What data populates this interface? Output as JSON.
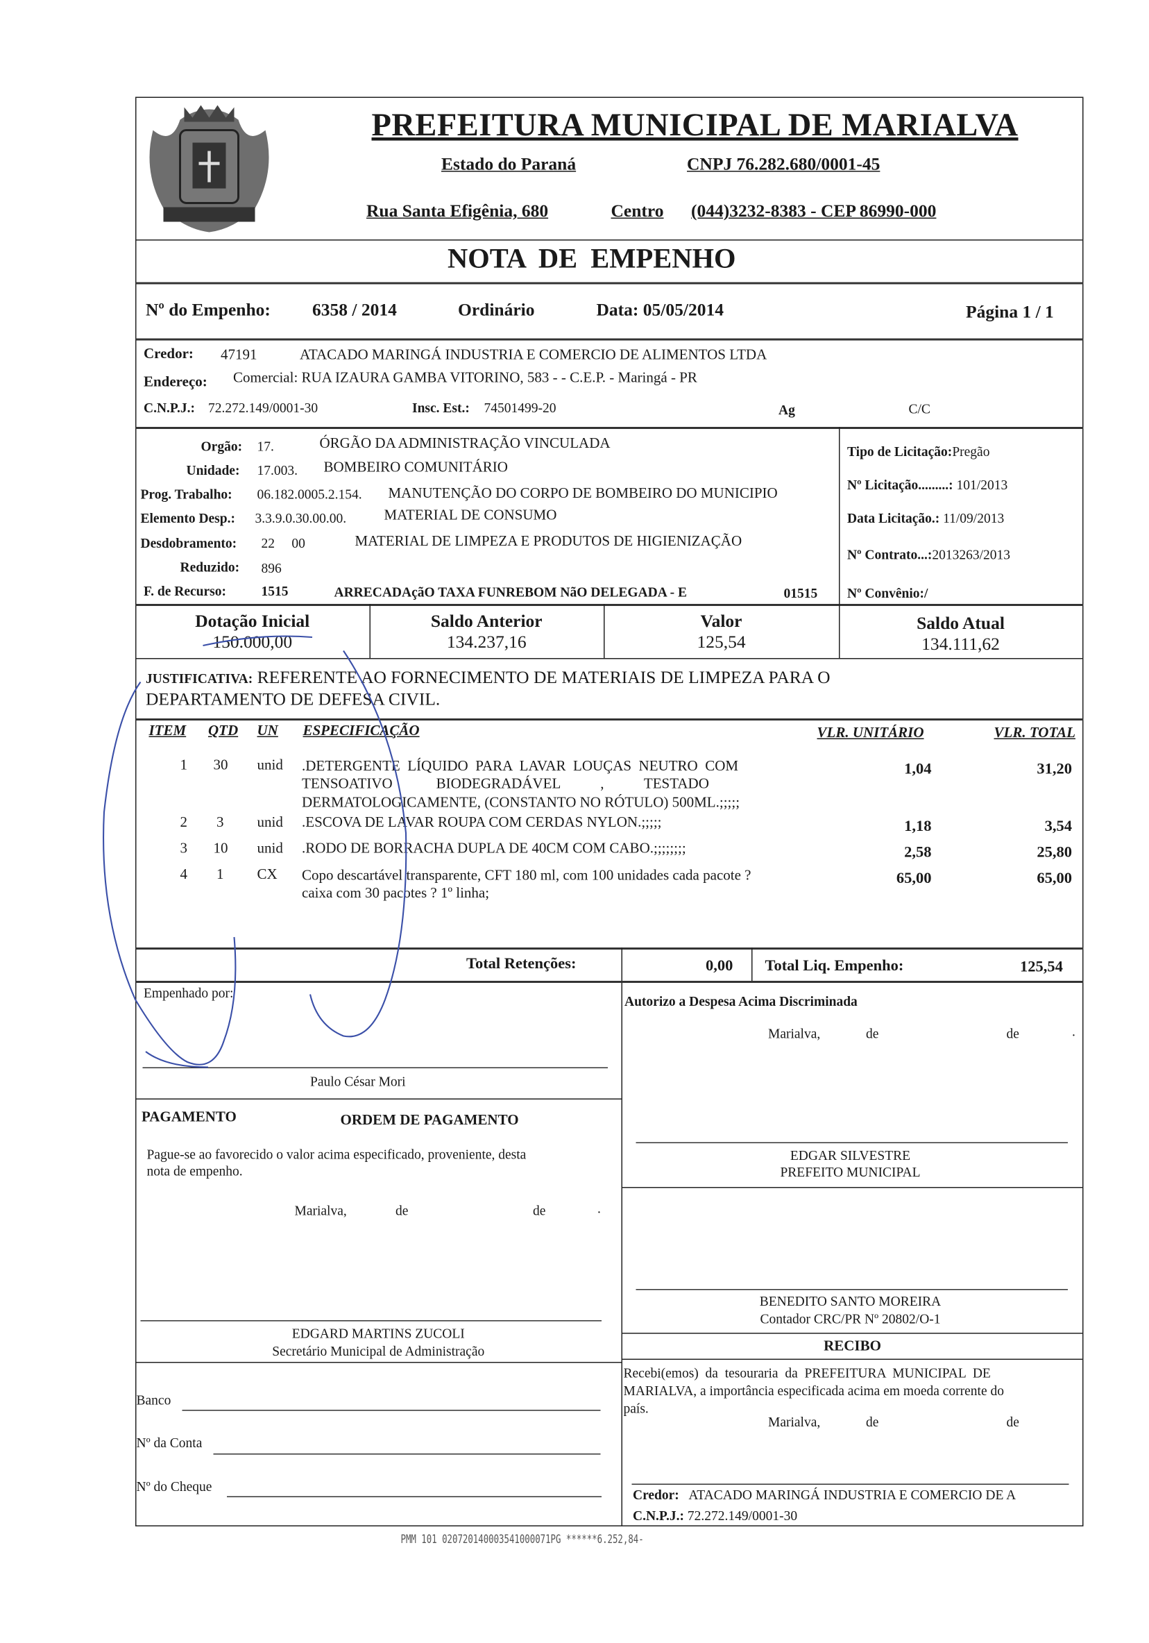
{
  "header": {
    "title": "PREFEITURA MUNICIPAL DE MARIALVA",
    "state": "Estado do Paraná",
    "cnpj": "CNPJ 76.282.680/0001-45",
    "address": "Rua Santa Efigênia, 680",
    "district": "Centro",
    "phone_cep": "(044)3232-8383  -  CEP 86990-000",
    "logo_icon": "coat-of-arms-marialva"
  },
  "doc_title": "NOTA DE EMPENHO",
  "summary": {
    "empenho_label": "Nº do Empenho:",
    "empenho_value": "6358 / 2014",
    "type": "Ordinário",
    "date": "Data: 05/05/2014",
    "page": "Página  1 / 1"
  },
  "credor": {
    "label": "Credor:",
    "code": "47191",
    "name": "ATACADO MARINGÁ INDUSTRIA E COMERCIO DE ALIMENTOS LTDA",
    "address_label": "Endereço:",
    "address": "Comercial: RUA IZAURA GAMBA VITORINO, 583 -  - C.E.P.  - Maringá  - PR",
    "cnpj_label": "C.N.P.J.:",
    "cnpj": "72.272.149/0001-30",
    "ie_label": "Insc. Est.:",
    "ie": "74501499-20",
    "ag": "Ag",
    "cc": "C/C"
  },
  "classification": [
    {
      "label": "Orgão:",
      "value": "17.",
      "desc": "ÓRGÃO DA ADMINISTRAÇÃO VINCULADA"
    },
    {
      "label": "Unidade:",
      "value": "17.003.",
      "desc": "BOMBEIRO COMUNITÁRIO"
    },
    {
      "label": "Prog. Trabalho:",
      "value": "06.182.0005.2.154.",
      "desc": "MANUTENÇÃO DO CORPO DE BOMBEIRO DO MUNICIPIO"
    },
    {
      "label": "Elemento Desp.:",
      "value": "3.3.9.0.30.00.00.",
      "desc": "MATERIAL DE CONSUMO"
    },
    {
      "label": "Desdobramento:",
      "value": "22     00",
      "desc": "MATERIAL DE LIMPEZA E PRODUTOS DE HIGIENIZAÇÃO"
    },
    {
      "label": "Reduzido:",
      "value": "896",
      "desc": ""
    },
    {
      "label": "F. de Recurso:",
      "value": "1515",
      "desc": "ARRECADAçãO TAXA FUNREBOM NãO DELEGADA - E",
      "code": "01515"
    }
  ],
  "licitacao": {
    "tipo": "Tipo de Licitação:",
    "tipo_value": "Pregão",
    "numero": "Nº Licitação.........:",
    "numero_value": "101/2013",
    "data": "Data Licitação.:",
    "data_value": "11/09/2013",
    "contrato": "Nº Contrato...:",
    "contrato_value": "2013263/2013",
    "convenio": "Nº Convênio:/"
  },
  "balances": [
    {
      "label": "Dotação Inicial",
      "value": "150.000,00"
    },
    {
      "label": "Saldo Anterior",
      "value": "134.237,16"
    },
    {
      "label": "Valor",
      "value": "125,54"
    },
    {
      "label": "Saldo Atual",
      "value": "134.111,62"
    }
  ],
  "justificativa": {
    "label": "JUSTIFICATIVA:",
    "line1": "REFERENTE AO FORNECIMENTO DE MATERIAIS DE LIMPEZA PARA O",
    "line2": "DEPARTAMENTO DE DEFESA CIVIL."
  },
  "items_header": {
    "item": "ITEM",
    "qtd": "QTD",
    "un": "UN",
    "spec": "ESPECIFICAÇÃO",
    "unit": "VLR. UNITÁRIO",
    "total": "VLR. TOTAL"
  },
  "items": [
    {
      "item": "1",
      "qtd": "30",
      "un": "unid",
      "lines": [
        ".DETERGENTE  LÍQUIDO  PARA  LAVAR  LOUÇAS  NEUTRO  COM",
        "TENSOATIVO            BIODEGRADÁVEL           ,           TESTADO",
        "DERMATOLOGICAMENTE, (CONSTANTO NO RÓTULO) 500ML.;;;;;"
      ],
      "unit": "1,04",
      "total": "31,20"
    },
    {
      "item": "2",
      "qtd": "3",
      "un": "unid",
      "lines": [
        ".ESCOVA DE LAVAR ROUPA COM CERDAS NYLON.;;;;;"
      ],
      "unit": "1,18",
      "total": "3,54"
    },
    {
      "item": "3",
      "qtd": "10",
      "un": "unid",
      "lines": [
        ".RODO DE BORRACHA DUPLA DE 40CM COM CABO.;;;;;;;;"
      ],
      "unit": "2,58",
      "total": "25,80"
    },
    {
      "item": "4",
      "qtd": "1",
      "un": "CX",
      "lines": [
        "Copo descartável transparente, CFT 180 ml, com 100 unidades cada pacote ?",
        "caixa com 30 pacotes ? 1º linha;"
      ],
      "unit": "65,00",
      "total": "65,00"
    }
  ],
  "totals": {
    "retencoes_label": "Total Retenções:",
    "retencoes": "0,00",
    "liquido_label": "Total Liq. Empenho:",
    "liquido": "125,54"
  },
  "left": {
    "empenhado": "Empenhado por:",
    "empenhado_name": "Paulo César Mori",
    "pagamento": "PAGAMENTO",
    "ordem": "ORDEM DE PAGAMENTO",
    "pague1": "Pague-se ao favorecido o valor acima especificado, proveniente, desta",
    "pague2": "nota de empenho.",
    "marialva": "Marialva,",
    "de1": "de",
    "de2": "de",
    "dot": ".",
    "sec_name": "EDGARD MARTINS ZUCOLI",
    "sec_title": "Secretário Municipal de Administração",
    "banco": "Banco",
    "conta": "Nº da Conta",
    "cheque": "Nº do Cheque"
  },
  "right": {
    "autorizo": "Autorizo a Despesa Acima Discriminada",
    "marialva": "Marialva,",
    "de1": "de",
    "de2": "de",
    "dot": ".",
    "prefeito_name": "EDGAR SILVESTRE",
    "prefeito_title": "PREFEITO MUNICIPAL",
    "contador_name": "BENEDITO SANTO MOREIRA",
    "contador_title": "Contador CRC/PR Nº 20802/O-1",
    "recibo": "RECIBO",
    "recibo1": "Recebi(emos)  da  tesouraria  da  PREFEITURA  MUNICIPAL  DE",
    "recibo2": "MARIALVA, a importância especificada acima em moeda corrente do",
    "recibo3": "país.",
    "credor_label": "Credor:",
    "credor": "ATACADO MARINGÁ INDUSTRIA E COMERCIO DE A",
    "cnpj_label": "C.N.P.J.:",
    "cnpj": "72.272.149/0001-30"
  },
  "footer_code": "PMM 101 020720140003541000071PG ******6.252,84-",
  "colors": {
    "ink": "#1a1a1a",
    "pen": "#3a4fa8"
  }
}
